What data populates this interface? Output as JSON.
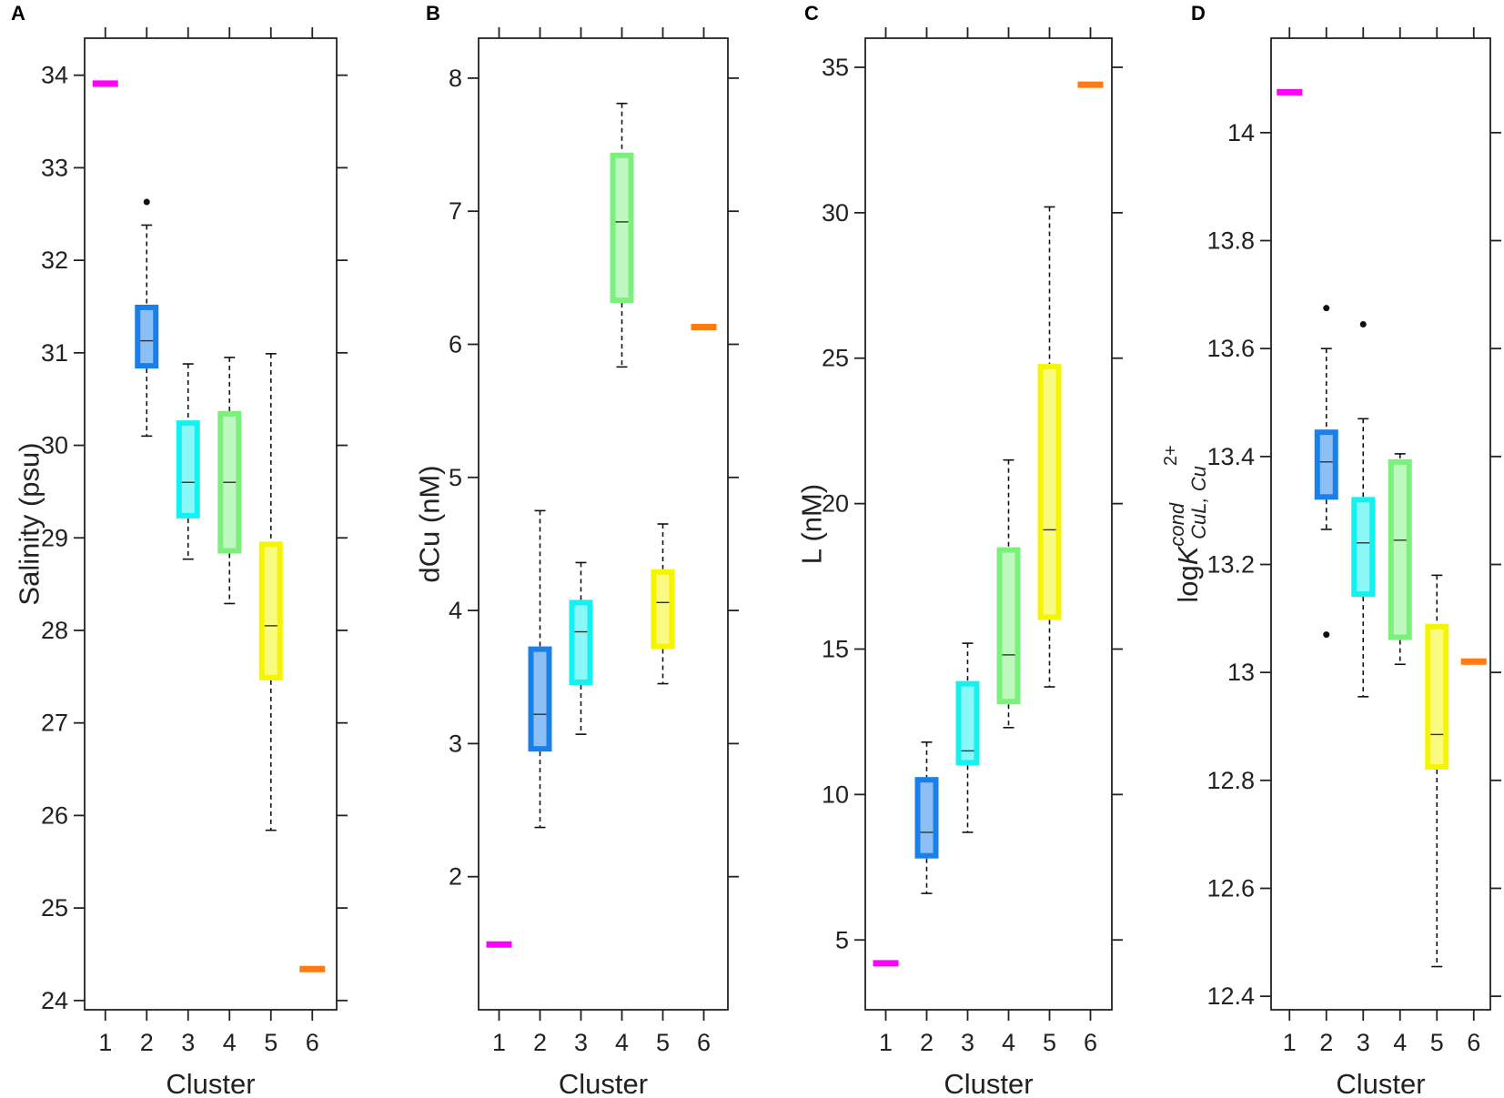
{
  "chart_data": [
    {
      "panel": "A",
      "type": "boxplot",
      "xlabel": "Cluster",
      "ylabel": "Salinity (psu)",
      "ylim": [
        23.9,
        34.4
      ],
      "yticks": [
        24,
        25,
        26,
        27,
        28,
        29,
        30,
        31,
        32,
        33,
        34
      ],
      "categories": [
        "1",
        "2",
        "3",
        "4",
        "5",
        "6"
      ],
      "colors": [
        "#ff00ff",
        "#1a7fe8",
        "#15f0f0",
        "#7cf07c",
        "#f5f500",
        "#ff7a10"
      ],
      "boxes": [
        {
          "cluster": "1",
          "lo": 33.91,
          "q1": 33.91,
          "med": 33.91,
          "q3": 33.91,
          "hi": 33.91,
          "outliers": []
        },
        {
          "cluster": "2",
          "lo": 30.1,
          "q1": 30.83,
          "med": 31.13,
          "q3": 31.52,
          "hi": 32.38,
          "outliers": [
            32.63
          ]
        },
        {
          "cluster": "3",
          "lo": 28.77,
          "q1": 29.21,
          "med": 29.6,
          "q3": 30.27,
          "hi": 30.88,
          "outliers": []
        },
        {
          "cluster": "4",
          "lo": 28.29,
          "q1": 28.83,
          "med": 29.6,
          "q3": 30.37,
          "hi": 30.95,
          "outliers": []
        },
        {
          "cluster": "5",
          "lo": 25.84,
          "q1": 27.46,
          "med": 28.05,
          "q3": 28.96,
          "hi": 30.99,
          "outliers": []
        },
        {
          "cluster": "6",
          "lo": 24.34,
          "q1": 24.34,
          "med": 24.34,
          "q3": 24.34,
          "hi": 24.34,
          "outliers": []
        }
      ]
    },
    {
      "panel": "B",
      "type": "boxplot",
      "xlabel": "Cluster",
      "ylabel": "dCu (nM)",
      "ylim": [
        1.0,
        8.3
      ],
      "yticks": [
        2,
        3,
        4,
        5,
        6,
        7,
        8
      ],
      "categories": [
        "1",
        "2",
        "3",
        "4",
        "5",
        "6"
      ],
      "colors": [
        "#ff00ff",
        "#1a7fe8",
        "#15f0f0",
        "#7cf07c",
        "#f5f500",
        "#ff7a10"
      ],
      "boxes": [
        {
          "cluster": "1",
          "lo": 1.49,
          "q1": 1.49,
          "med": 1.49,
          "q3": 1.49,
          "hi": 1.49,
          "outliers": []
        },
        {
          "cluster": "2",
          "lo": 2.37,
          "q1": 2.94,
          "med": 3.22,
          "q3": 3.73,
          "hi": 4.75,
          "outliers": []
        },
        {
          "cluster": "3",
          "lo": 3.07,
          "q1": 3.44,
          "med": 3.84,
          "q3": 4.08,
          "hi": 4.36,
          "outliers": []
        },
        {
          "cluster": "4",
          "lo": 5.83,
          "q1": 6.31,
          "med": 6.92,
          "q3": 7.44,
          "hi": 7.81,
          "outliers": []
        },
        {
          "cluster": "5",
          "lo": 3.45,
          "q1": 3.71,
          "med": 4.06,
          "q3": 4.31,
          "hi": 4.65,
          "outliers": []
        },
        {
          "cluster": "6",
          "lo": 6.13,
          "q1": 6.13,
          "med": 6.13,
          "q3": 6.13,
          "hi": 6.13,
          "outliers": []
        }
      ]
    },
    {
      "panel": "C",
      "type": "boxplot",
      "xlabel": "Cluster",
      "ylabel": "L (nM)",
      "ylim": [
        2.6,
        36.0
      ],
      "yticks": [
        5,
        10,
        15,
        20,
        25,
        30,
        35
      ],
      "categories": [
        "1",
        "2",
        "3",
        "4",
        "5",
        "6"
      ],
      "colors": [
        "#ff00ff",
        "#1a7fe8",
        "#15f0f0",
        "#7cf07c",
        "#f5f500",
        "#ff7a10"
      ],
      "boxes": [
        {
          "cluster": "1",
          "lo": 4.2,
          "q1": 4.2,
          "med": 4.2,
          "q3": 4.2,
          "hi": 4.2,
          "outliers": []
        },
        {
          "cluster": "2",
          "lo": 6.6,
          "q1": 7.8,
          "med": 8.7,
          "q3": 10.6,
          "hi": 11.8,
          "outliers": []
        },
        {
          "cluster": "3",
          "lo": 8.7,
          "q1": 11.0,
          "med": 11.5,
          "q3": 13.9,
          "hi": 15.2,
          "outliers": []
        },
        {
          "cluster": "4",
          "lo": 12.3,
          "q1": 13.1,
          "med": 14.8,
          "q3": 18.5,
          "hi": 21.5,
          "outliers": []
        },
        {
          "cluster": "5",
          "lo": 13.7,
          "q1": 16.0,
          "med": 19.1,
          "q3": 24.8,
          "hi": 30.2,
          "outliers": []
        },
        {
          "cluster": "6",
          "lo": 34.4,
          "q1": 34.4,
          "med": 34.4,
          "q3": 34.4,
          "hi": 34.4,
          "outliers": []
        }
      ]
    },
    {
      "panel": "D",
      "type": "boxplot",
      "xlabel": "Cluster",
      "ylabel": "logKCuL,Cu2+",
      "ylabel_parts": {
        "base": "log",
        "main": "K",
        "sup": "cond",
        "sub": "CuL, Cu",
        "sup2": "2+"
      },
      "ylim": [
        12.375,
        14.175
      ],
      "yticks": [
        12.4,
        12.6,
        12.8,
        13,
        13.2,
        13.4,
        13.6,
        13.8,
        14
      ],
      "categories": [
        "1",
        "2",
        "3",
        "4",
        "5",
        "6"
      ],
      "colors": [
        "#ff00ff",
        "#1a7fe8",
        "#15f0f0",
        "#7cf07c",
        "#f5f500",
        "#ff7a10"
      ],
      "boxes": [
        {
          "cluster": "1",
          "lo": 14.075,
          "q1": 14.075,
          "med": 14.075,
          "q3": 14.075,
          "hi": 14.075,
          "outliers": []
        },
        {
          "cluster": "2",
          "lo": 13.265,
          "q1": 13.32,
          "med": 13.39,
          "q3": 13.45,
          "hi": 13.6,
          "outliers": [
            13.675,
            13.07
          ]
        },
        {
          "cluster": "3",
          "lo": 12.955,
          "q1": 13.14,
          "med": 13.24,
          "q3": 13.325,
          "hi": 13.47,
          "outliers": [
            13.645
          ]
        },
        {
          "cluster": "4",
          "lo": 13.015,
          "q1": 13.06,
          "med": 13.245,
          "q3": 13.395,
          "hi": 13.405,
          "outliers": []
        },
        {
          "cluster": "5",
          "lo": 12.455,
          "q1": 12.82,
          "med": 12.885,
          "q3": 13.09,
          "hi": 13.18,
          "outliers": []
        },
        {
          "cluster": "6",
          "lo": 13.02,
          "q1": 13.02,
          "med": 13.02,
          "q3": 13.02,
          "hi": 13.02,
          "outliers": []
        }
      ]
    }
  ]
}
